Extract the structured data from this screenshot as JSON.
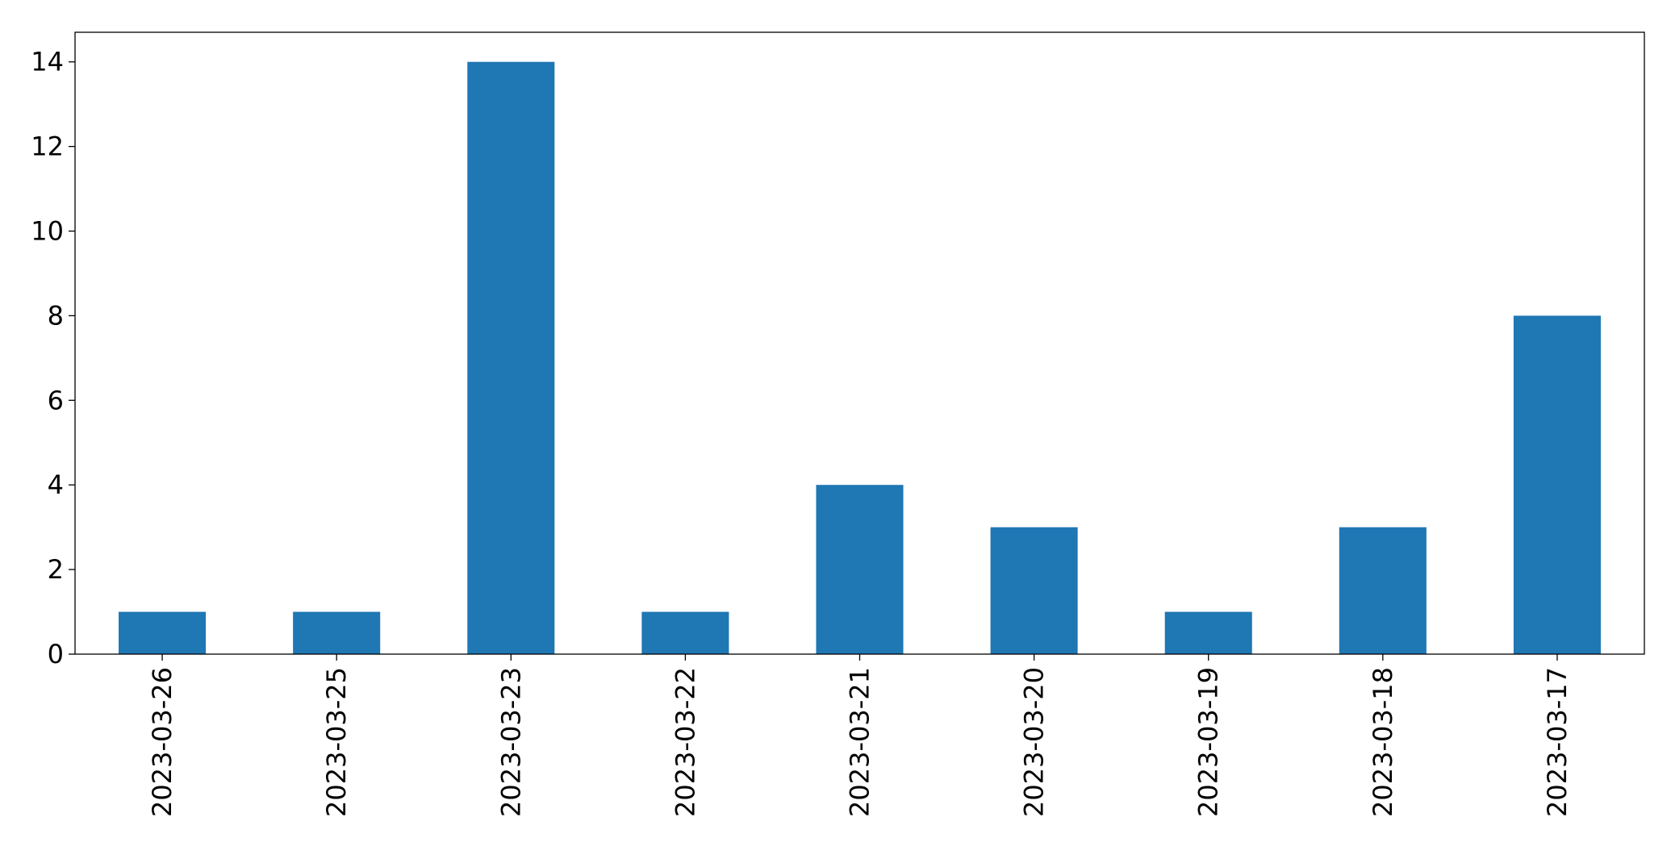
{
  "chart_data": {
    "type": "bar",
    "title": "",
    "xlabel": "",
    "ylabel": "",
    "categories": [
      "2023-03-26",
      "2023-03-25",
      "2023-03-23",
      "2023-03-22",
      "2023-03-21",
      "2023-03-20",
      "2023-03-19",
      "2023-03-18",
      "2023-03-17"
    ],
    "values": [
      1,
      1,
      14,
      1,
      4,
      3,
      1,
      3,
      8
    ],
    "ylim": [
      0,
      14.7
    ],
    "yticks": [
      0,
      2,
      4,
      6,
      8,
      10,
      12,
      14
    ],
    "bar_color": "#1f77b4",
    "grid": false,
    "legend": "none"
  }
}
